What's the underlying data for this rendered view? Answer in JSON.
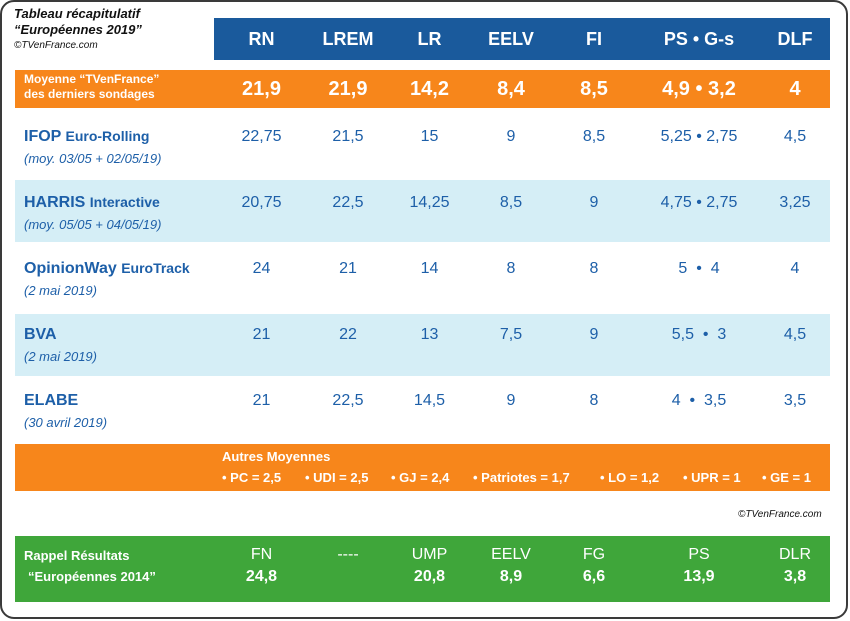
{
  "title": {
    "line1": "Tableau récapitulatif",
    "line2": "“Européennes 2019”",
    "credit": "©TVenFrance.com"
  },
  "columns": [
    "RN",
    "LREM",
    "LR",
    "EELV",
    "FI",
    "PS • G-s",
    "DLF"
  ],
  "average": {
    "label_line1": "Moyenne “TVenFrance”",
    "label_line2": "des derniers sondages",
    "values": [
      "21,9",
      "21,9",
      "14,2",
      "8,4",
      "8,5",
      "4,9 • 3,2",
      "4"
    ]
  },
  "polls": [
    {
      "name": "IFOP",
      "suffix": "Euro-Rolling",
      "date": "(moy. 03/05 + 02/05/19)",
      "values": [
        "22,75",
        "21,5",
        "15",
        "9",
        "8,5",
        "5,25 • 2,75",
        "4,5"
      ]
    },
    {
      "name": "HARRIS",
      "suffix": "Interactive",
      "date": "(moy. 05/05 + 04/05/19)",
      "values": [
        "20,75",
        "22,5",
        "14,25",
        "8,5",
        "9",
        "4,75 • 2,75",
        "3,25"
      ]
    },
    {
      "name": "OpinionWay",
      "suffix": "EuroTrack",
      "date": "(2 mai 2019)",
      "values": [
        "24",
        "21",
        "14",
        "8",
        "8",
        "5  •  4",
        "4"
      ]
    },
    {
      "name": "BVA",
      "suffix": "",
      "date": "(2 mai 2019)",
      "values": [
        "21",
        "22",
        "13",
        "7,5",
        "9",
        "5,5  •  3",
        "4,5"
      ]
    },
    {
      "name": "ELABE",
      "suffix": "",
      "date": "(30 avril 2019)",
      "values": [
        "21",
        "22,5",
        "14,5",
        "9",
        "8",
        "4  •  3,5",
        "3,5"
      ]
    }
  ],
  "others": {
    "title": "Autres Moyennes",
    "items": [
      "• PC = 2,5",
      "• UDI = 2,5",
      "• GJ = 2,4",
      "• Patriotes = 1,7",
      "• LO = 1,2",
      "• UPR = 1",
      "• GE = 1"
    ]
  },
  "credit_mid": "©TVenFrance.com",
  "recall": {
    "label_line1": "Rappel Résultats",
    "label_line2": "“Européennes 2014”",
    "parties": [
      "FN",
      "----",
      "UMP",
      "EELV",
      "FG",
      "PS",
      "DLR"
    ],
    "values": [
      "24,8",
      "",
      "20,8",
      "8,9",
      "6,6",
      "13,9",
      "3,8"
    ]
  },
  "colors": {
    "header": "#1a5a9c",
    "orange": "#f7861b",
    "light_blue": "#d5eef6",
    "green": "#3fa63a",
    "text_blue": "#1d5fa8"
  }
}
